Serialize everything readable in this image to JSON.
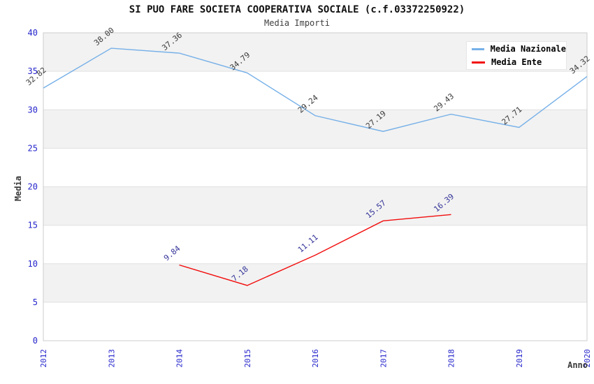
{
  "title": "SI PUO FARE SOCIETA COOPERATIVA SOCIALE (c.f.03372250922)",
  "subtitle": "Media Importi",
  "chart_data": {
    "type": "line",
    "categories": [
      "2012",
      "2013",
      "2014",
      "2015",
      "2016",
      "2017",
      "2018",
      "2019",
      "2020"
    ],
    "xlabel": "Anno",
    "ylabel": "Media",
    "ylim": [
      0,
      40
    ],
    "ytick_step": 5,
    "grid": "alternating horizontal bands, horizontal gridlines every 5 units",
    "legend_position": "top-right",
    "series": [
      {
        "name": "Media Nazionale",
        "color": "#76b0e8",
        "label_color": "#3a3a3a",
        "x_start_index": 0,
        "values": [
          32.82,
          38.0,
          37.36,
          34.79,
          29.24,
          27.19,
          29.43,
          27.71,
          34.32
        ],
        "labels": [
          "32.82",
          "38.00",
          "37.36",
          "34.79",
          "29.24",
          "27.19",
          "29.43",
          "27.71",
          "34.32"
        ]
      },
      {
        "name": "Media Ente",
        "color": "#f20d0d",
        "label_color": "#333399",
        "x_start_index": 2,
        "values": [
          9.84,
          7.18,
          11.11,
          15.57,
          16.39
        ],
        "labels": [
          "9.84",
          "7.18",
          "11.11",
          "15.57",
          "16.39"
        ]
      }
    ]
  },
  "colors": {
    "axis_tick_text": "#2525cc",
    "axis_title_text": "#3a3a3a",
    "band_gray": "#f2f2f2",
    "gridline": "#e0e0e0",
    "plot_border": "#cccccc",
    "title_text": "#111111",
    "subtitle_text": "#404040",
    "legend_bg": "#ffffff"
  }
}
